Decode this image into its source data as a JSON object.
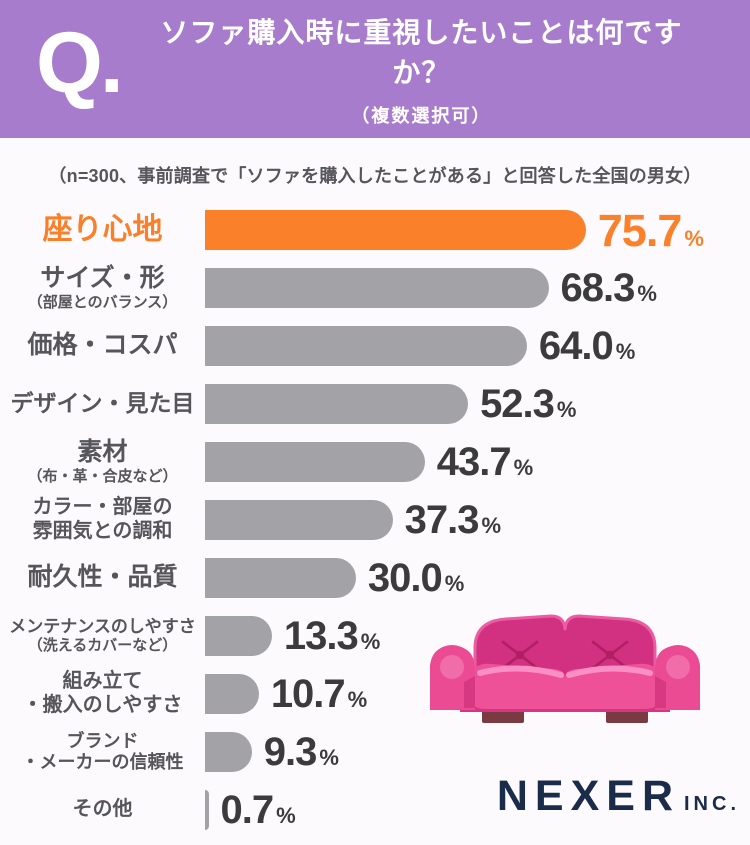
{
  "header": {
    "q_label": "Q.",
    "title": "ソファ購入時に重視したいことは何ですか？",
    "subtitle": "（複数選択可）",
    "bg_color": "#a87ccd"
  },
  "note": "（n=300、事前調査で「ソファを購入したことがある」と回答した全国の男女）",
  "chart_data": {
    "type": "bar",
    "orientation": "horizontal",
    "title": "ソファ購入時に重視したいことは何ですか？（複数選択可）",
    "sample_note": "n=300",
    "unit": "%",
    "xlim": [
      0,
      100
    ],
    "grid": false,
    "highlight_color": "#fa8029",
    "bar_color": "#a2a2a7",
    "categories": [
      "座り心地",
      "サイズ・形（部屋とのバランス）",
      "価格・コスパ",
      "デザイン・見た目",
      "素材（布・革・合皮など）",
      "カラー・部屋の雰囲気との調和",
      "耐久性・品質",
      "メンテナンスのしやすさ（洗えるカバーなど）",
      "組み立て・搬入のしやすさ",
      "ブランド・メーカーの信頼性",
      "その他"
    ],
    "values": [
      75.7,
      68.3,
      64.0,
      52.3,
      43.7,
      37.3,
      30.0,
      13.3,
      10.7,
      9.3,
      0.7
    ],
    "percent_sign": "%",
    "rows": [
      {
        "label1": "座り心地",
        "pct": "75.7",
        "value": 75.7,
        "highlight": true
      },
      {
        "label1": "サイズ・形",
        "label2": "（部屋とのバランス）",
        "pct": "68.3",
        "value": 68.3
      },
      {
        "label1": "価格・コスパ",
        "pct": "64.0",
        "value": 64.0
      },
      {
        "label1": "デザイン・見た目",
        "pct": "52.3",
        "value": 52.3
      },
      {
        "label1": "素材",
        "label2": "（布・革・合皮など）",
        "pct": "43.7",
        "value": 43.7
      },
      {
        "label1": "カラー・部屋の",
        "label2": "雰囲気との調和",
        "pct": "37.3",
        "value": 37.3
      },
      {
        "label1": "耐久性・品質",
        "pct": "30.0",
        "value": 30.0
      },
      {
        "label1": "メンテナンスのしやすさ",
        "label2": "（洗えるカバーなど）",
        "pct": "13.3",
        "value": 13.3
      },
      {
        "label1": "組み立て",
        "label2": "・搬入のしやすさ",
        "pct": "10.7",
        "value": 10.7
      },
      {
        "label1": "ブランド",
        "label2": "・メーカーの信頼性",
        "pct": "9.3",
        "value": 9.3
      },
      {
        "label1": "その他",
        "pct": "0.7",
        "value": 0.7
      }
    ]
  },
  "footer": {
    "brand": "NEXER",
    "brand_suffix": "INC.",
    "brand_color": "#1b2b4a"
  },
  "illustration": {
    "name": "pink-sofa",
    "main_color": "#ea4b93"
  }
}
